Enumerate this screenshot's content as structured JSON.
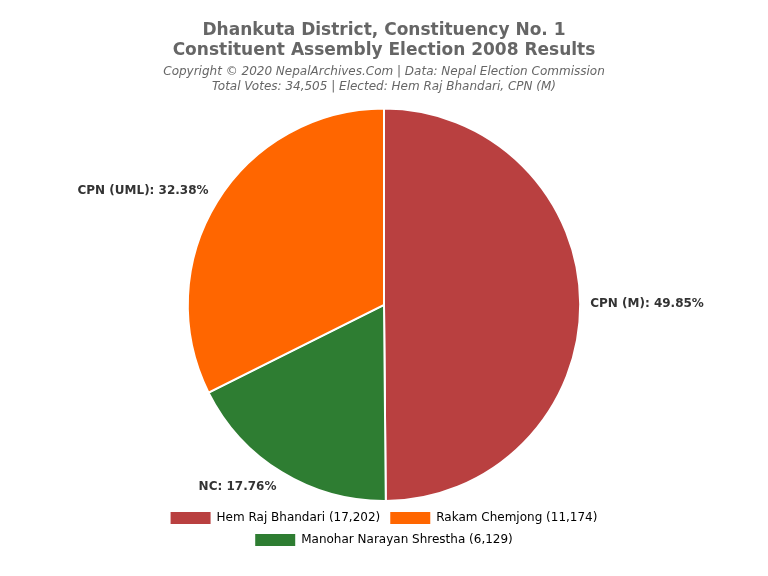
{
  "chart_data": {
    "type": "pie",
    "title": [
      "Dhankuta District, Constituency No. 1",
      "Constituent Assembly Election 2008 Results"
    ],
    "subtitle": [
      "Copyright © 2020 NepalArchives.Com | Data: Nepal Election Commission",
      "Total Votes: 34,505 | Elected: Hem Raj Bhandari, CPN (M)"
    ],
    "categories": [
      "CPN (M): 49.85%",
      "NC: 17.76%",
      "CPN (UML): 32.38%"
    ],
    "values": [
      49.85,
      17.76,
      32.38
    ],
    "colors": [
      "#B94040",
      "#2E7D32",
      "#FF6600"
    ],
    "data_labels": true,
    "legend": "bottom",
    "legend_entries": [
      {
        "label": "Hem Raj Bhandari (17,202)",
        "color": "#B94040"
      },
      {
        "label": "Rakam Chemjong (11,174)",
        "color": "#FF6600"
      },
      {
        "label": "Manohar Narayan Shrestha (6,129)",
        "color": "#2E7D32"
      }
    ]
  }
}
